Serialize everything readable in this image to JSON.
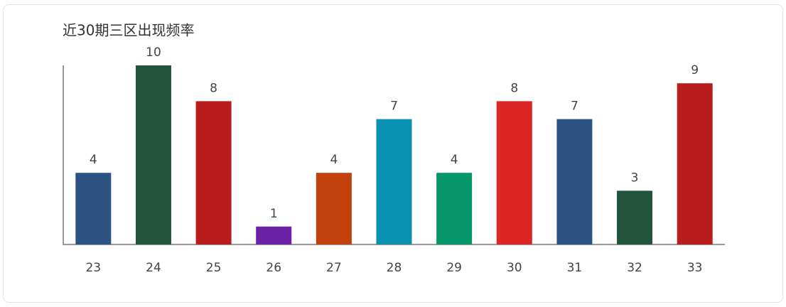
{
  "chart_data": {
    "type": "bar",
    "title": "近30期三区出现频率",
    "categories": [
      "23",
      "24",
      "25",
      "26",
      "27",
      "28",
      "29",
      "30",
      "31",
      "32",
      "33"
    ],
    "values": [
      4,
      10,
      8,
      1,
      4,
      7,
      4,
      8,
      7,
      3,
      9
    ],
    "colors": [
      "#2c5282",
      "#22543d",
      "#b91c1c",
      "#6b21a8",
      "#c2410c",
      "#0891b2",
      "#059669",
      "#dc2626",
      "#2c5282",
      "#22543d",
      "#b91c1c"
    ],
    "ylim": [
      0,
      10
    ]
  }
}
